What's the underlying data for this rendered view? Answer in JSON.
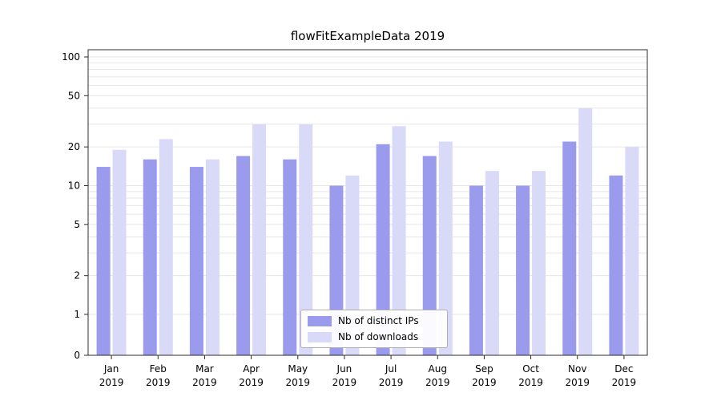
{
  "chart_data": {
    "type": "bar",
    "title": "flowFitExampleData 2019",
    "categories": [
      "Jan 2019",
      "Feb 2019",
      "Mar 2019",
      "Apr 2019",
      "May 2019",
      "Jun 2019",
      "Jul 2019",
      "Aug 2019",
      "Sep 2019",
      "Oct 2019",
      "Nov 2019",
      "Dec 2019"
    ],
    "series": [
      {
        "name": "Nb of distinct IPs",
        "color": "#9b9bee",
        "values": [
          14,
          16,
          14,
          17,
          16,
          10,
          21,
          17,
          10,
          10,
          22,
          12
        ]
      },
      {
        "name": "Nb of downloads",
        "color": "#d9d9f8",
        "values": [
          19,
          23,
          16,
          30,
          30,
          12,
          29,
          22,
          13,
          13,
          40,
          20
        ]
      }
    ],
    "yscale": "symlog",
    "yticks": [
      0,
      1,
      2,
      5,
      10,
      20,
      50,
      100
    ],
    "ylim": [
      0,
      100
    ],
    "grid": "horizontal-log-minor",
    "legend_position": "lower center",
    "colors": {
      "grid": "#e6e6e6",
      "axis": "#2b2b2b",
      "text": "#000000"
    }
  }
}
